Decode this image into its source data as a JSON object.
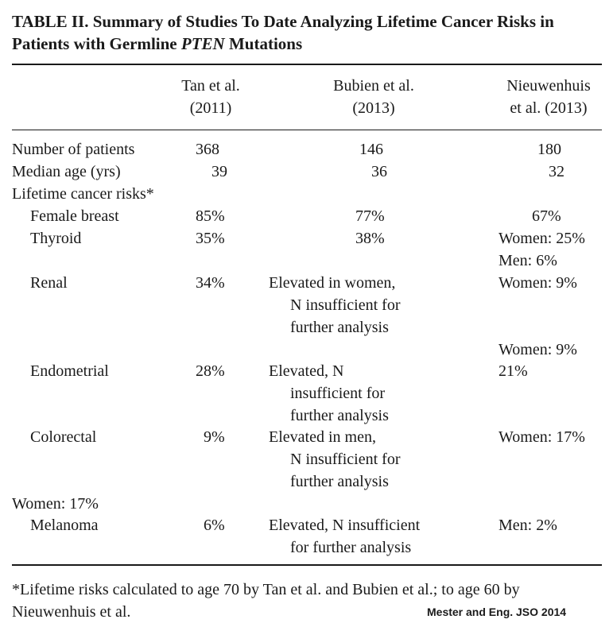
{
  "title": {
    "line1": "TABLE II.  Summary of Studies To Date Analyzing Lifetime Cancer Risks in",
    "line2_pre": "Patients with Germline ",
    "line2_gene": "PTEN",
    "line2_post": " Mutations"
  },
  "headers": {
    "tan_1": "Tan et al.",
    "tan_2": "(2011)",
    "bubien_1": "Bubien et al.",
    "bubien_2": "(2013)",
    "nieu_1": "Nieuwenhuis",
    "nieu_2": "et al. (2013)"
  },
  "rows": {
    "patients": {
      "label": "Number of patients",
      "tan": "368",
      "bubien": "146",
      "nieu": "180"
    },
    "age": {
      "label": "Median age (yrs)",
      "tan": "39",
      "bubien": "36",
      "nieu": "32"
    },
    "risks_heading": "Lifetime cancer risks*",
    "breast": {
      "label": "Female breast",
      "tan": "85%",
      "bubien": "77%",
      "nieu": "67%"
    },
    "thyroid": {
      "label": "Thyroid",
      "tan": "35%",
      "bubien": "38%",
      "nieu_1": "Women: 25%",
      "nieu_2": "Men: 6%"
    },
    "renal": {
      "label": "Renal",
      "tan": "34%",
      "bubien_1": "Elevated in women,",
      "bubien_2": "N insufficient for",
      "bubien_3": "further analysis",
      "nieu_1": "Women: 9%",
      "nieu_2": "Women: 9%"
    },
    "endometrial": {
      "label": "Endometrial",
      "tan": "28%",
      "bubien_1": "Elevated, N",
      "bubien_2": "insufficient for",
      "bubien_3": "further analysis",
      "nieu": "21%"
    },
    "colorectal": {
      "label": "Colorectal",
      "tan": "9%",
      "bubien_1": "Elevated in men,",
      "bubien_2": "N insufficient for",
      "bubien_3": "further analysis",
      "nieu": "Women: 17%"
    },
    "stray": "Women: 17%",
    "melanoma": {
      "label": "Melanoma",
      "tan": "6%",
      "bubien_1": "Elevated, N insufficient",
      "bubien_2": "for further analysis",
      "nieu": "Men: 2%"
    }
  },
  "footnote": {
    "line1": "*Lifetime risks calculated to age 70 by Tan et al. and Bubien et al.; to age 60 by",
    "line2": "Nieuwenhuis et al."
  },
  "credit": "Mester and Eng. JSO 2014"
}
